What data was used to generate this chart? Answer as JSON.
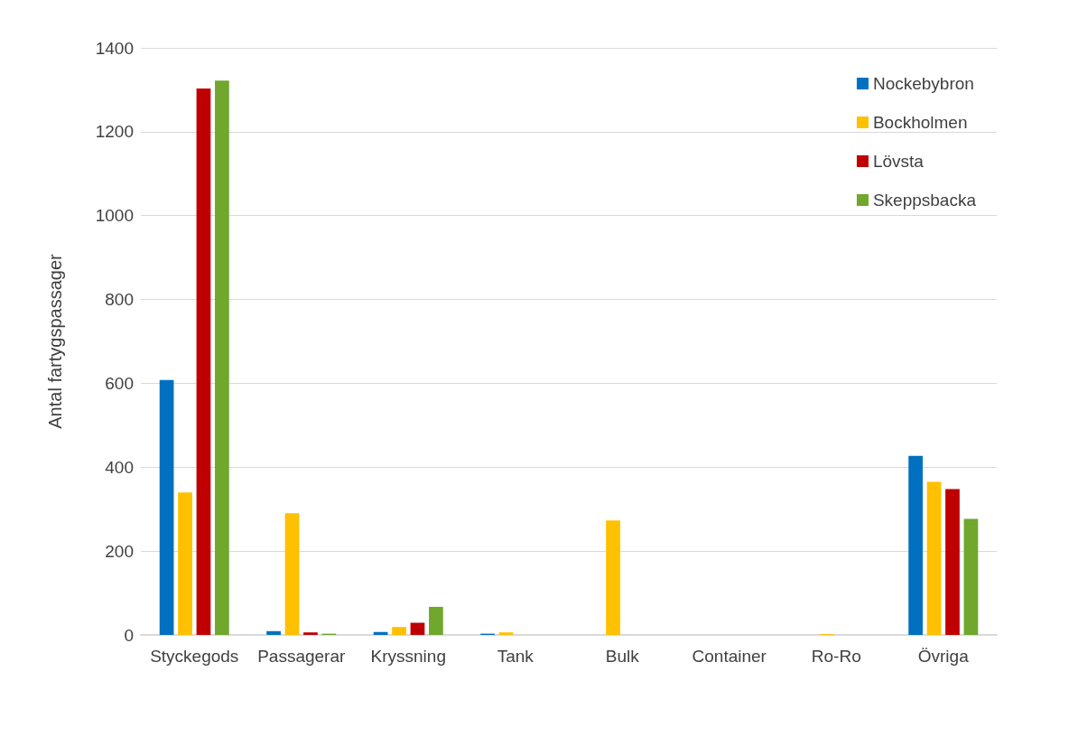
{
  "chart_data": {
    "type": "bar",
    "ylabel": "Antal fartygspassager",
    "categories": [
      "Styckegods",
      "Passagerar",
      "Kryssning",
      "Tank",
      "Bulk",
      "Container",
      "Ro-Ro",
      "Övriga"
    ],
    "series": [
      {
        "name": "Nockebybron",
        "color": "#0070c0",
        "values": [
          608,
          9,
          7,
          3,
          0,
          0,
          0,
          427
        ]
      },
      {
        "name": "Bockholmen",
        "color": "#ffc000",
        "values": [
          340,
          290,
          19,
          6,
          273,
          0,
          2,
          365
        ]
      },
      {
        "name": "Lövsta",
        "color": "#c00000",
        "values": [
          1303,
          6,
          29,
          0,
          0,
          0,
          0,
          348
        ]
      },
      {
        "name": "Skeppsbacka",
        "color": "#70a72d",
        "values": [
          1322,
          3,
          67,
          0,
          0,
          0,
          0,
          277
        ]
      }
    ],
    "ylim": [
      0,
      1400
    ],
    "yticks": [
      0,
      200,
      400,
      600,
      800,
      1000,
      1200,
      1400
    ],
    "grid": "y",
    "legend": "top right"
  }
}
